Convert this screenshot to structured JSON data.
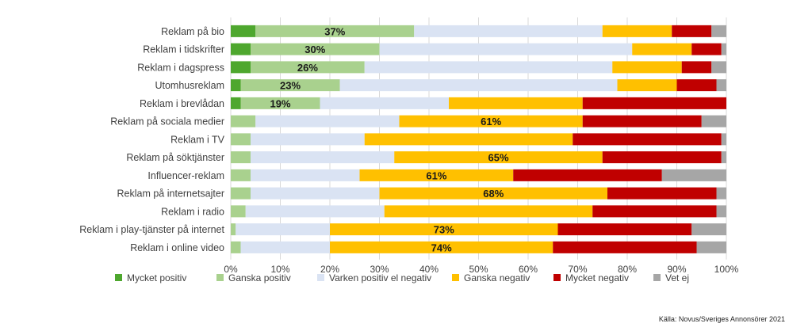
{
  "chart_data": {
    "type": "bar",
    "orientation": "horizontal",
    "stacked": true,
    "percent_stacked": true,
    "title": "",
    "categories": [
      "Reklam på bio",
      "Reklam i tidskrifter",
      "Reklam i dagspress",
      "Utomhusreklam",
      "Reklam i brevlådan",
      "Reklam på sociala medier",
      "Reklam i TV",
      "Reklam på söktjänster",
      "Influencer-reklam",
      "Reklam på internetsajter",
      "Reklam i radio",
      "Reklam i play-tjänster på internet",
      "Reklam i online video"
    ],
    "series": [
      {
        "name": "Mycket positiv",
        "color": "#4ea72e",
        "values": [
          5,
          4,
          4,
          2,
          2,
          0,
          0,
          0,
          0,
          0,
          0,
          0,
          0
        ]
      },
      {
        "name": "Ganska positiv",
        "color": "#a9d18e",
        "values": [
          32,
          26,
          23,
          20,
          16,
          5,
          4,
          4,
          4,
          4,
          3,
          1,
          2
        ]
      },
      {
        "name": "Varken positiv el negativ",
        "color": "#dae3f3",
        "values": [
          38,
          51,
          50,
          56,
          26,
          29,
          23,
          29,
          22,
          26,
          28,
          19,
          18
        ]
      },
      {
        "name": "Ganska negativ",
        "color": "#ffc000",
        "values": [
          14,
          12,
          14,
          12,
          27,
          37,
          42,
          42,
          31,
          46,
          42,
          46,
          45
        ]
      },
      {
        "name": "Mycket negativ",
        "color": "#c00000",
        "values": [
          8,
          6,
          6,
          8,
          29,
          24,
          30,
          24,
          30,
          22,
          25,
          27,
          29
        ]
      },
      {
        "name": "Vet ej",
        "color": "#a6a6a6",
        "values": [
          3,
          1,
          3,
          2,
          0,
          5,
          1,
          1,
          13,
          2,
          2,
          7,
          6
        ]
      }
    ],
    "data_labels": [
      {
        "category": "Reklam på bio",
        "series": "Ganska positiv",
        "text": "37%"
      },
      {
        "category": "Reklam i tidskrifter",
        "series": "Ganska positiv",
        "text": "30%"
      },
      {
        "category": "Reklam i dagspress",
        "series": "Ganska positiv",
        "text": "26%"
      },
      {
        "category": "Utomhusreklam",
        "series": "Ganska positiv",
        "text": "23%"
      },
      {
        "category": "Reklam i brevlådan",
        "series": "Ganska positiv",
        "text": "19%"
      },
      {
        "category": "Reklam på sociala medier",
        "series": "Ganska negativ",
        "text": "61%"
      },
      {
        "category": "Reklam på söktjänster",
        "series": "Ganska negativ",
        "text": "65%"
      },
      {
        "category": "Influencer-reklam",
        "series": "Ganska negativ",
        "text": "61%"
      },
      {
        "category": "Reklam på internetsajter",
        "series": "Ganska negativ",
        "text": "68%"
      },
      {
        "category": "Reklam i play-tjänster på internet",
        "series": "Ganska negativ",
        "text": "73%"
      },
      {
        "category": "Reklam i online video",
        "series": "Ganska negativ",
        "text": "74%"
      }
    ],
    "x_ticks": [
      "0%",
      "10%",
      "20%",
      "30%",
      "40%",
      "50%",
      "60%",
      "70%",
      "80%",
      "90%",
      "100%"
    ],
    "xlim": [
      0,
      100
    ],
    "xlabel": "",
    "ylabel": "",
    "grid": true,
    "legend": "bottom",
    "source": "Källa: Novus/Sveriges Annonsörer 2021"
  }
}
